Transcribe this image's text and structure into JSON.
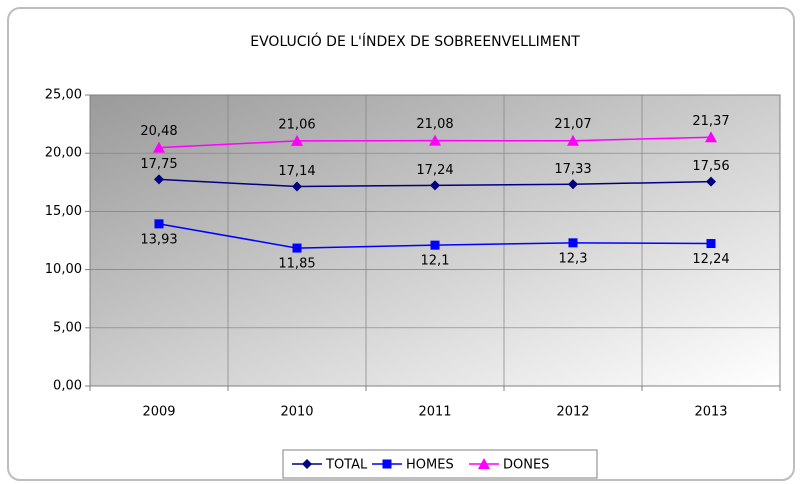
{
  "chart_data": {
    "type": "line",
    "title": "EVOLUCIÓ DE L'ÍNDEX DE SOBREENVELLIMENT",
    "categories": [
      "2009",
      "2010",
      "2011",
      "2012",
      "2013"
    ],
    "series": [
      {
        "name": "TOTAL",
        "color": "#000080",
        "marker": "diamond",
        "values": [
          17.75,
          17.14,
          17.24,
          17.33,
          17.56
        ],
        "value_labels": [
          "17,75",
          "17,14",
          "17,24",
          "17,33",
          "17,56"
        ]
      },
      {
        "name": "HOMES",
        "color": "#0000ff",
        "marker": "square",
        "values": [
          13.93,
          11.85,
          12.1,
          12.3,
          12.24
        ],
        "value_labels": [
          "13,93",
          "11,85",
          "12,1",
          "12,3",
          "12,24"
        ]
      },
      {
        "name": "DONES",
        "color": "#ff00ff",
        "marker": "triangle",
        "values": [
          20.48,
          21.06,
          21.08,
          21.07,
          21.37
        ],
        "value_labels": [
          "20,48",
          "21,06",
          "21,08",
          "21,07",
          "21,37"
        ]
      }
    ],
    "ylim": [
      0,
      25
    ],
    "yticks": [
      {
        "value": 0,
        "label": "0,00"
      },
      {
        "value": 5,
        "label": "5,00"
      },
      {
        "value": 10,
        "label": "10,00"
      },
      {
        "value": 15,
        "label": "15,00"
      },
      {
        "value": 20,
        "label": "20,00"
      },
      {
        "value": 25,
        "label": "25,00"
      }
    ],
    "grid": true,
    "legend": "bottom"
  }
}
